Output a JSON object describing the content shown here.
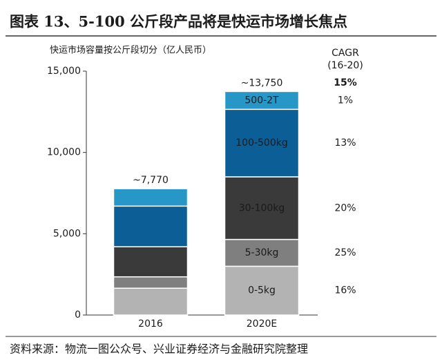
{
  "chart_data": {
    "type": "stacked-bar",
    "title": "图表 13、5-100 公斤段产品将是快运市场增长焦点",
    "subtitle": "快运市场容量按公斤段切分（亿人民币）",
    "source": "资料来源：物流一图公众号、兴业证券经济与金融研究院整理",
    "categories": [
      "2016",
      "2020E"
    ],
    "ylim": [
      0,
      15000
    ],
    "yticks": [
      0,
      {
        "value": 5000,
        "label": "5,000"
      },
      {
        "value": 10000,
        "label": "10,000"
      },
      {
        "value": 15000,
        "label": "15,000"
      }
    ],
    "series": [
      {
        "name": "0-5kg",
        "color": "#b3b3b3",
        "values": [
          1650,
          3000
        ],
        "cagr": "16%"
      },
      {
        "name": "5-30kg",
        "color": "#7f7f7f",
        "values": [
          700,
          1650
        ],
        "cagr": "25%"
      },
      {
        "name": "30-100kg",
        "color": "#3a3a3a",
        "values": [
          1850,
          3850
        ],
        "cagr": "20%"
      },
      {
        "name": "100-500kg",
        "color": "#0b5e96",
        "values": [
          2500,
          4150
        ],
        "cagr": "13%"
      },
      {
        "name": "500-2T",
        "color": "#2797c8",
        "values": [
          1070,
          1100
        ],
        "cagr": "1%"
      }
    ],
    "totals": [
      7770,
      13750
    ],
    "total_labels": [
      "~7,770",
      "~13,750"
    ],
    "cagr_title": "CAGR",
    "cagr_period": "(16-20)",
    "cagr_total": "15%"
  }
}
